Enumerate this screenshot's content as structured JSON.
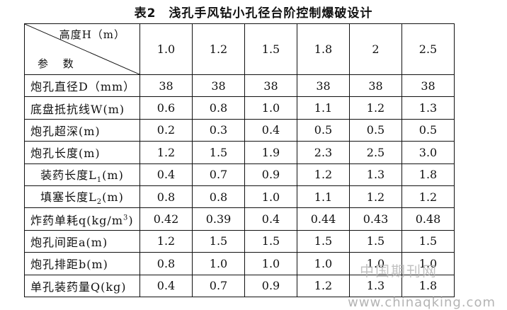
{
  "title": "表2　浅孔手风钻小孔径台阶控制爆破设计",
  "header": {
    "corner_top": "高度H（m）",
    "corner_bottom": "参 数",
    "columns": [
      "1.0",
      "1.2",
      "1.5",
      "1.8",
      "2",
      "2.5"
    ]
  },
  "rows": [
    {
      "label": "炮孔直径D（mm）",
      "values": [
        "38",
        "38",
        "38",
        "38",
        "38",
        "38"
      ]
    },
    {
      "label": "底盘抵抗线W(m)",
      "values": [
        "0.6",
        "0.8",
        "1.0",
        "1.1",
        "1.2",
        "1.3"
      ]
    },
    {
      "label": "炮孔超深(m)",
      "values": [
        "0.2",
        "0.3",
        "0.4",
        "0.5",
        "0.5",
        "0.5"
      ]
    },
    {
      "label": "炮孔长度(m)",
      "values": [
        "1.2",
        "1.5",
        "1.9",
        "2.3",
        "2.5",
        "3.0"
      ]
    },
    {
      "label_main": "装药长度L",
      "label_sub": "1",
      "label_tail": "(m)",
      "values": [
        "0.4",
        "0.7",
        "0.9",
        "1.2",
        "1.3",
        "1.8"
      ]
    },
    {
      "label_main": "填塞长度L",
      "label_sub": "2",
      "label_tail": "(m)",
      "values": [
        "0.8",
        "0.8",
        "1.0",
        "1.1",
        "1.2",
        "1.2"
      ]
    },
    {
      "label_main": "炸药单耗q(kg/m",
      "label_sup": "3",
      "label_tail": ")",
      "values": [
        "0.42",
        "0.39",
        "0.4",
        "0.44",
        "0.43",
        "0.48"
      ]
    },
    {
      "label": "炮孔间距a(m)",
      "values": [
        "1.2",
        "1.5",
        "1.5",
        "1.5",
        "1.5",
        "1.5"
      ]
    },
    {
      "label": "炮孔排距b(m)",
      "values": [
        "0.8",
        "1.0",
        "1.0",
        "1.0",
        "1.0",
        "1.0"
      ]
    },
    {
      "label": "单孔装药量Q(kg)",
      "values": [
        "0.4",
        "0.7",
        "0.9",
        "1.2",
        "1.3",
        "1.8"
      ]
    }
  ],
  "watermark": {
    "cn": "中国期刊网",
    "url": "www.chinaqking.com"
  }
}
